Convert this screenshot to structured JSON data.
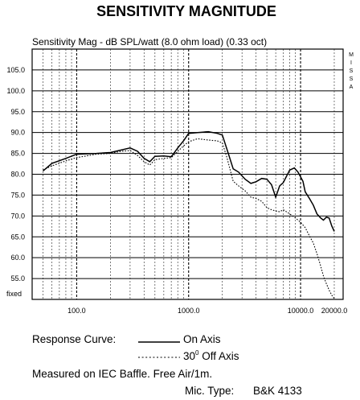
{
  "chart_data": {
    "type": "line",
    "title": "SENSITIVITY MAGNITUDE",
    "subtitle": "Sensitivity Mag - dB SPL/watt  (8.0 ohm load) (0.33 oct)",
    "brand_letters": [
      "M",
      "I",
      "S",
      "S",
      "A"
    ],
    "x_scale": "log",
    "xlim": [
      40,
      24000
    ],
    "ylim": [
      50,
      110
    ],
    "x_ticks": [
      {
        "value": 100,
        "label": "100.0"
      },
      {
        "value": 1000,
        "label": "1000.0"
      },
      {
        "value": 10000,
        "label": "10000.0"
      },
      {
        "value": 20000,
        "label": "20000.0"
      }
    ],
    "y_ticks": [
      {
        "value": 55,
        "label": "55.0"
      },
      {
        "value": 60,
        "label": "60.0"
      },
      {
        "value": 65,
        "label": "65.0"
      },
      {
        "value": 70,
        "label": "70.0"
      },
      {
        "value": 75,
        "label": "75.0"
      },
      {
        "value": 80,
        "label": "80.0"
      },
      {
        "value": 85,
        "label": "85.0"
      },
      {
        "value": 90,
        "label": "90.0"
      },
      {
        "value": 95,
        "label": "95.0"
      },
      {
        "value": 100,
        "label": "100.0"
      },
      {
        "value": 105,
        "label": "105.0"
      }
    ],
    "y_bottom_label": "fixed",
    "grid": true,
    "series": [
      {
        "name": "On Axis",
        "style": "solid",
        "color": "#000000",
        "points": [
          [
            50,
            80.8
          ],
          [
            60,
            82.6
          ],
          [
            80,
            83.8
          ],
          [
            100,
            84.8
          ],
          [
            150,
            85.0
          ],
          [
            200,
            85.2
          ],
          [
            250,
            85.8
          ],
          [
            300,
            86.3
          ],
          [
            350,
            85.5
          ],
          [
            400,
            83.8
          ],
          [
            450,
            83.0
          ],
          [
            500,
            84.3
          ],
          [
            600,
            84.4
          ],
          [
            700,
            84.2
          ],
          [
            800,
            86.3
          ],
          [
            900,
            88.0
          ],
          [
            1000,
            89.8
          ],
          [
            1200,
            90.0
          ],
          [
            1500,
            90.2
          ],
          [
            1800,
            89.8
          ],
          [
            2000,
            89.4
          ],
          [
            2200,
            86.0
          ],
          [
            2500,
            81.3
          ],
          [
            2800,
            80.5
          ],
          [
            3200,
            78.8
          ],
          [
            3600,
            77.8
          ],
          [
            4000,
            78.2
          ],
          [
            4500,
            79.0
          ],
          [
            5000,
            78.8
          ],
          [
            5500,
            77.5
          ],
          [
            6000,
            74.5
          ],
          [
            6500,
            77.2
          ],
          [
            7000,
            78.0
          ],
          [
            8000,
            81.0
          ],
          [
            8800,
            81.5
          ],
          [
            9500,
            80.5
          ],
          [
            10500,
            78.3
          ],
          [
            11000,
            75.8
          ],
          [
            12000,
            74.2
          ],
          [
            13000,
            72.6
          ],
          [
            14000,
            70.5
          ],
          [
            15000,
            69.6
          ],
          [
            16000,
            69.0
          ],
          [
            17000,
            69.7
          ],
          [
            18000,
            69.5
          ],
          [
            19000,
            67.6
          ],
          [
            20000,
            66.3
          ]
        ]
      },
      {
        "name": "30° Off Axis",
        "style": "dotted",
        "color": "#000000",
        "points": [
          [
            50,
            81.0
          ],
          [
            60,
            82.0
          ],
          [
            80,
            83.2
          ],
          [
            100,
            84.0
          ],
          [
            150,
            84.8
          ],
          [
            200,
            85.0
          ],
          [
            250,
            85.5
          ],
          [
            300,
            85.7
          ],
          [
            350,
            84.5
          ],
          [
            400,
            83.0
          ],
          [
            450,
            82.2
          ],
          [
            500,
            83.5
          ],
          [
            600,
            83.8
          ],
          [
            700,
            84.0
          ],
          [
            800,
            85.5
          ],
          [
            900,
            86.8
          ],
          [
            1000,
            87.8
          ],
          [
            1200,
            88.5
          ],
          [
            1500,
            88.2
          ],
          [
            1800,
            88.0
          ],
          [
            2000,
            87.5
          ],
          [
            2200,
            84.0
          ],
          [
            2500,
            78.3
          ],
          [
            2800,
            77.2
          ],
          [
            3200,
            76.0
          ],
          [
            3600,
            74.5
          ],
          [
            4000,
            74.2
          ],
          [
            4500,
            73.5
          ],
          [
            5000,
            72.0
          ],
          [
            5500,
            71.5
          ],
          [
            6000,
            71.2
          ],
          [
            6500,
            71.0
          ],
          [
            7000,
            71.5
          ],
          [
            8000,
            70.5
          ],
          [
            9000,
            69.5
          ],
          [
            10000,
            68.5
          ],
          [
            11000,
            67.2
          ],
          [
            12000,
            65.2
          ],
          [
            13000,
            63.5
          ],
          [
            14000,
            61.0
          ],
          [
            15000,
            58.3
          ],
          [
            16000,
            55.6
          ],
          [
            17000,
            53.8
          ],
          [
            18000,
            52.2
          ],
          [
            19000,
            51.0
          ],
          [
            20000,
            50.2
          ]
        ]
      }
    ],
    "legend": {
      "heading": "Response Curve:",
      "on_axis_label": "On Axis",
      "off_axis_number": "30",
      "off_axis_degree": "0",
      "off_axis_suffix": " Off Axis",
      "measurement_note": "Measured on IEC Baffle. Free Air/1m.",
      "mic_label": "Mic. Type:",
      "mic_value": "B&K 4133"
    }
  }
}
